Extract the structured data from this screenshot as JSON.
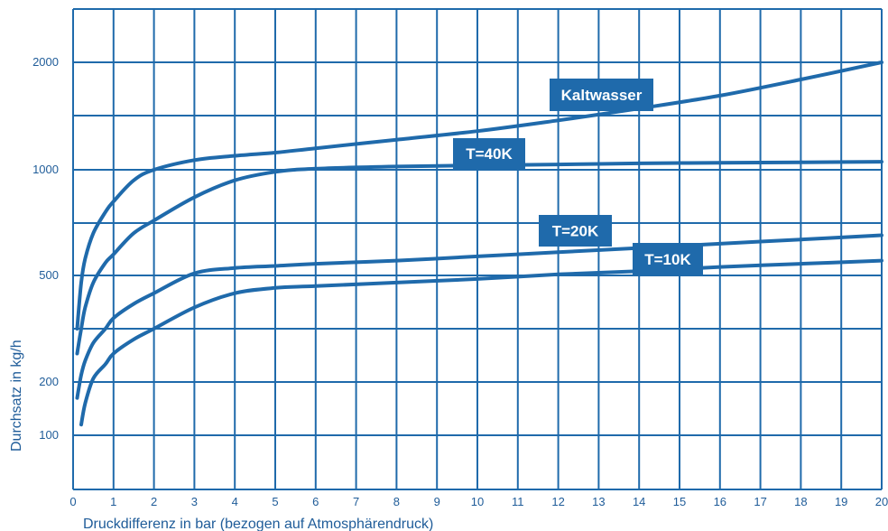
{
  "chart_data": {
    "type": "line",
    "xlabel": "Druckdifferenz in bar (bezogen auf Atmosphärendruck)",
    "ylabel": "Durchsatz in kg/h",
    "xlim": [
      0,
      20
    ],
    "x_ticks": [
      "0",
      "1",
      "2",
      "3",
      "4",
      "5",
      "6",
      "7",
      "8",
      "9",
      "10",
      "11",
      "12",
      "13",
      "14",
      "15",
      "16",
      "17",
      "18",
      "19",
      "20"
    ],
    "y_ticks": [
      {
        "label": "100",
        "value": 100
      },
      {
        "label": "200",
        "value": 200
      },
      {
        "label": "500",
        "value": 500
      },
      {
        "label": "1000",
        "value": 1000
      },
      {
        "label": "2000",
        "value": 2000
      }
    ],
    "grid": true,
    "colors": {
      "line": "#1f6aab",
      "grid": "#1f6aab",
      "text": "#1f5c99",
      "label_bg": "#1f6aab"
    },
    "series": [
      {
        "name": "Kaltwasser",
        "x": [
          0.1,
          0.2,
          0.3,
          0.5,
          0.8,
          1,
          1.5,
          2,
          3,
          4,
          5,
          6,
          8,
          10,
          12,
          14,
          16,
          18,
          20
        ],
        "y": [
          350,
          480,
          580,
          700,
          800,
          850,
          950,
          1000,
          1090,
          1130,
          1160,
          1200,
          1280,
          1360,
          1460,
          1570,
          1690,
          1840,
          2000
        ]
      },
      {
        "name": "T=40K",
        "x": [
          0.1,
          0.2,
          0.3,
          0.5,
          0.8,
          1,
          1.5,
          2,
          3,
          4,
          5,
          6,
          8,
          10,
          12,
          14,
          16,
          18,
          20
        ],
        "y": [
          280,
          350,
          410,
          480,
          560,
          600,
          700,
          760,
          870,
          950,
          990,
          1010,
          1030,
          1040,
          1050,
          1060,
          1065,
          1070,
          1075
        ]
      },
      {
        "name": "T=20K",
        "x": [
          0.1,
          0.2,
          0.3,
          0.5,
          0.8,
          1,
          1.5,
          2,
          3,
          4,
          5,
          6,
          8,
          10,
          12,
          14,
          16,
          18,
          20
        ],
        "y": [
          170,
          220,
          260,
          310,
          350,
          380,
          420,
          450,
          510,
          535,
          545,
          555,
          570,
          590,
          610,
          630,
          650,
          670,
          690
        ]
      },
      {
        "name": "T=10K",
        "x": [
          0.2,
          0.3,
          0.5,
          0.8,
          1,
          1.5,
          2,
          3,
          4,
          5,
          6,
          8,
          10,
          12,
          14,
          16,
          18,
          20
        ],
        "y": [
          120,
          160,
          210,
          250,
          280,
          320,
          350,
          410,
          450,
          465,
          470,
          480,
          490,
          505,
          520,
          540,
          555,
          570
        ]
      }
    ]
  }
}
